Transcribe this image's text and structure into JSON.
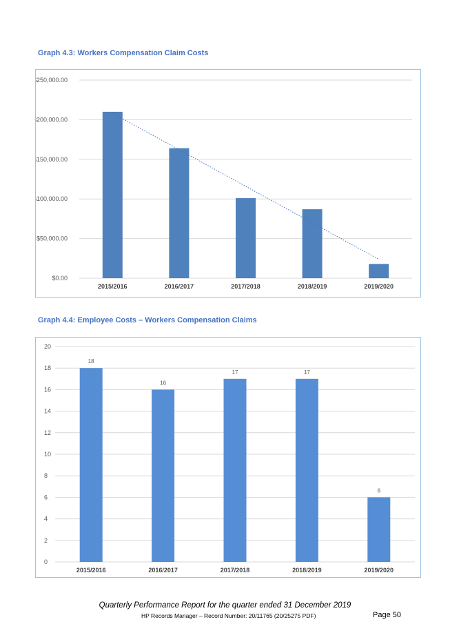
{
  "chart_data": [
    {
      "type": "bar",
      "title": "Graph 4.3: Workers Compensation Claim Costs",
      "categories": [
        "2015/2016",
        "2016/2017",
        "2017/2018",
        "2018/2019",
        "2019/2020"
      ],
      "values": [
        210000,
        164000,
        101000,
        87000,
        18000
      ],
      "ylim": [
        0,
        250000
      ],
      "yticks": [
        "$0.00",
        "$50,000.00",
        "$100,000.00",
        "$150,000.00",
        "$200,000.00",
        "$250,000.00"
      ],
      "trendline": "linear",
      "grid": true,
      "bar_color": "#4f81bd"
    },
    {
      "type": "bar",
      "title": "Graph 4.4: Employee Costs – Workers Compensation Claims",
      "categories": [
        "2015/2016",
        "2016/2017",
        "2017/2018",
        "2018/2019",
        "2019/2020"
      ],
      "values": [
        18,
        16,
        17,
        17,
        6
      ],
      "data_labels": [
        "18",
        "16",
        "17",
        "17",
        "6"
      ],
      "ylim": [
        0,
        20
      ],
      "yticks": [
        "0",
        "2",
        "4",
        "6",
        "8",
        "10",
        "12",
        "14",
        "16",
        "18",
        "20"
      ],
      "grid": true,
      "bar_color": "#558ed5"
    }
  ],
  "footer": {
    "title": "Quarterly Performance Report for the quarter ended 31 December 2019",
    "record": "HP Records Manager – Record Number: 20/11765 (20/25275 PDF)",
    "page": "Page 50"
  }
}
